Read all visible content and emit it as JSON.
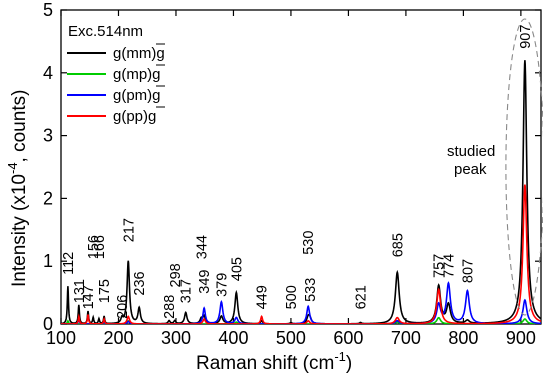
{
  "chart_data": {
    "type": "line",
    "xlabel_main": "Raman shift (cm",
    "xlabel_sup": "-1",
    "xlabel_tail": ")",
    "ylabel_main": "Intensity (x10",
    "ylabel_sup": "-4",
    "ylabel_tail": ", counts)",
    "xlim": [
      100,
      935
    ],
    "ylim": [
      0,
      5
    ],
    "xticks": [
      100,
      200,
      300,
      400,
      500,
      600,
      700,
      800,
      900
    ],
    "yticks": [
      0,
      1,
      2,
      3,
      4,
      5
    ],
    "annotation": "Exc.514nm",
    "studied_label": [
      "studied",
      "peak"
    ],
    "studied_center": 907,
    "series": [
      {
        "name": "g(mm)g",
        "color": "#000000",
        "peaks": [
          [
            112,
            0.6,
            1.2
          ],
          [
            131,
            0.3,
            1.2
          ],
          [
            147,
            0.2,
            1.2
          ],
          [
            156,
            0.1,
            1.2
          ],
          [
            166,
            0.08,
            1.2
          ],
          [
            175,
            0.12,
            1.2
          ],
          [
            206,
            0.08,
            2
          ],
          [
            217,
            1.0,
            2.5
          ],
          [
            236,
            0.25,
            2.5
          ],
          [
            288,
            0.05,
            2
          ],
          [
            298,
            0.05,
            2
          ],
          [
            317,
            0.18,
            2.5
          ],
          [
            344,
            0.08,
            2.5
          ],
          [
            349,
            0.12,
            2.5
          ],
          [
            379,
            0.12,
            3
          ],
          [
            405,
            0.5,
            3
          ],
          [
            449,
            0.05,
            2
          ],
          [
            500,
            0.02,
            2
          ],
          [
            530,
            0.1,
            3
          ],
          [
            533,
            0.08,
            3
          ],
          [
            621,
            0.02,
            2
          ],
          [
            685,
            0.82,
            4
          ],
          [
            757,
            0.6,
            4
          ],
          [
            774,
            0.3,
            4
          ],
          [
            807,
            0.05,
            4
          ],
          [
            907,
            4.2,
            4
          ]
        ]
      },
      {
        "name": "g(mp)g",
        "color": "#00cc00",
        "peaks": [
          [
            112,
            0.05,
            1.2
          ],
          [
            217,
            0.05,
            2.5
          ],
          [
            405,
            0.03,
            3
          ],
          [
            685,
            0.03,
            4
          ],
          [
            757,
            0.1,
            4
          ],
          [
            907,
            0.08,
            4
          ]
        ]
      },
      {
        "name": "g(pm)g",
        "color": "#0000ff",
        "peaks": [
          [
            131,
            0.08,
            1.2
          ],
          [
            175,
            0.04,
            1.2
          ],
          [
            217,
            0.04,
            2.5
          ],
          [
            349,
            0.25,
            2.5
          ],
          [
            379,
            0.35,
            3
          ],
          [
            405,
            0.1,
            3
          ],
          [
            530,
            0.28,
            3
          ],
          [
            685,
            0.05,
            4
          ],
          [
            757,
            0.3,
            4
          ],
          [
            774,
            0.63,
            4
          ],
          [
            807,
            0.52,
            4
          ],
          [
            907,
            0.38,
            4
          ]
        ]
      },
      {
        "name": "g(pp)g",
        "color": "#ff0000",
        "peaks": [
          [
            131,
            0.12,
            1.2
          ],
          [
            147,
            0.15,
            1.2
          ],
          [
            175,
            0.08,
            1.2
          ],
          [
            217,
            0.12,
            2.5
          ],
          [
            349,
            0.08,
            2.5
          ],
          [
            449,
            0.12,
            2
          ],
          [
            530,
            0.05,
            3
          ],
          [
            685,
            0.1,
            4
          ],
          [
            757,
            0.55,
            4
          ],
          [
            907,
            2.22,
            4
          ]
        ]
      }
    ],
    "peak_labels": [
      "112",
      "131",
      "147",
      "156",
      "166",
      "175",
      "206",
      "217",
      "236",
      "288",
      "298",
      "317",
      "344",
      "349",
      "379",
      "405",
      "449",
      "500",
      "530",
      "533",
      "621",
      "685",
      "757",
      "774",
      "807",
      "907"
    ],
    "peak_label_x": [
      112,
      131,
      147,
      156,
      166,
      175,
      206,
      217,
      236,
      288,
      298,
      317,
      344,
      349,
      379,
      405,
      449,
      500,
      530,
      533,
      621,
      685,
      757,
      774,
      807,
      907
    ],
    "peak_label_y": [
      0.75,
      0.3,
      0.2,
      1.0,
      1.0,
      0.3,
      0.05,
      1.27,
      0.42,
      0.05,
      0.55,
      0.3,
      1.0,
      0.45,
      0.4,
      0.65,
      0.2,
      0.2,
      1.07,
      0.32,
      0.2,
      1.03,
      0.7,
      0.7,
      0.62,
      4.35
    ]
  }
}
